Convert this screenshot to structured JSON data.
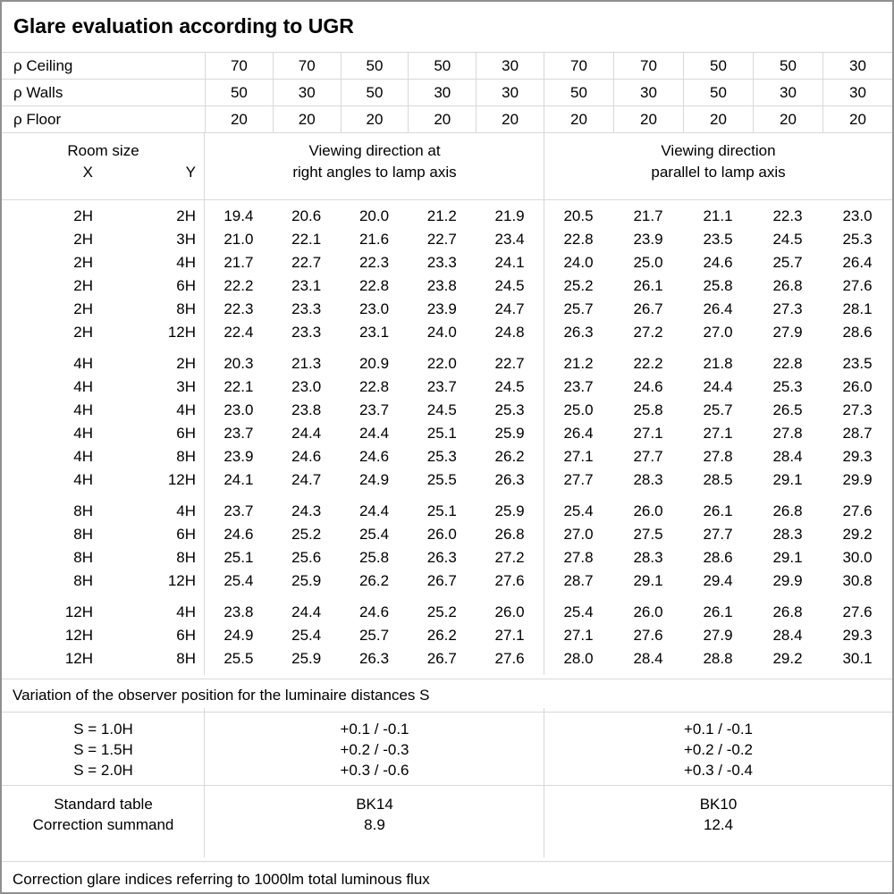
{
  "title": "Glare evaluation according to UGR",
  "colors": {
    "background": "#ffffff",
    "text": "#000000",
    "border_outer": "#909090",
    "border_inner": "#d8d8d8"
  },
  "reflectance_rows": [
    {
      "label": "ρ Ceiling",
      "values": [
        "70",
        "70",
        "50",
        "50",
        "30",
        "70",
        "70",
        "50",
        "50",
        "30"
      ]
    },
    {
      "label": "ρ Walls",
      "values": [
        "50",
        "30",
        "50",
        "30",
        "30",
        "50",
        "30",
        "50",
        "30",
        "30"
      ]
    },
    {
      "label": "ρ Floor",
      "values": [
        "20",
        "20",
        "20",
        "20",
        "20",
        "20",
        "20",
        "20",
        "20",
        "20"
      ]
    }
  ],
  "header": {
    "room_size": "Room size",
    "x": "X",
    "y": "Y",
    "group1_line1": "Viewing direction at",
    "group1_line2": "right angles to lamp axis",
    "group2_line1": "Viewing direction",
    "group2_line2": "parallel to lamp axis"
  },
  "blocks": [
    {
      "rows": [
        {
          "x": "2H",
          "y": "2H",
          "values": [
            "19.4",
            "20.6",
            "20.0",
            "21.2",
            "21.9",
            "20.5",
            "21.7",
            "21.1",
            "22.3",
            "23.0"
          ]
        },
        {
          "x": "2H",
          "y": "3H",
          "values": [
            "21.0",
            "22.1",
            "21.6",
            "22.7",
            "23.4",
            "22.8",
            "23.9",
            "23.5",
            "24.5",
            "25.3"
          ]
        },
        {
          "x": "2H",
          "y": "4H",
          "values": [
            "21.7",
            "22.7",
            "22.3",
            "23.3",
            "24.1",
            "24.0",
            "25.0",
            "24.6",
            "25.7",
            "26.4"
          ]
        },
        {
          "x": "2H",
          "y": "6H",
          "values": [
            "22.2",
            "23.1",
            "22.8",
            "23.8",
            "24.5",
            "25.2",
            "26.1",
            "25.8",
            "26.8",
            "27.6"
          ]
        },
        {
          "x": "2H",
          "y": "8H",
          "values": [
            "22.3",
            "23.3",
            "23.0",
            "23.9",
            "24.7",
            "25.7",
            "26.7",
            "26.4",
            "27.3",
            "28.1"
          ]
        },
        {
          "x": "2H",
          "y": "12H",
          "values": [
            "22.4",
            "23.3",
            "23.1",
            "24.0",
            "24.8",
            "26.3",
            "27.2",
            "27.0",
            "27.9",
            "28.6"
          ]
        }
      ]
    },
    {
      "rows": [
        {
          "x": "4H",
          "y": "2H",
          "values": [
            "20.3",
            "21.3",
            "20.9",
            "22.0",
            "22.7",
            "21.2",
            "22.2",
            "21.8",
            "22.8",
            "23.5"
          ]
        },
        {
          "x": "4H",
          "y": "3H",
          "values": [
            "22.1",
            "23.0",
            "22.8",
            "23.7",
            "24.5",
            "23.7",
            "24.6",
            "24.4",
            "25.3",
            "26.0"
          ]
        },
        {
          "x": "4H",
          "y": "4H",
          "values": [
            "23.0",
            "23.8",
            "23.7",
            "24.5",
            "25.3",
            "25.0",
            "25.8",
            "25.7",
            "26.5",
            "27.3"
          ]
        },
        {
          "x": "4H",
          "y": "6H",
          "values": [
            "23.7",
            "24.4",
            "24.4",
            "25.1",
            "25.9",
            "26.4",
            "27.1",
            "27.1",
            "27.8",
            "28.7"
          ]
        },
        {
          "x": "4H",
          "y": "8H",
          "values": [
            "23.9",
            "24.6",
            "24.6",
            "25.3",
            "26.2",
            "27.1",
            "27.7",
            "27.8",
            "28.4",
            "29.3"
          ]
        },
        {
          "x": "4H",
          "y": "12H",
          "values": [
            "24.1",
            "24.7",
            "24.9",
            "25.5",
            "26.3",
            "27.7",
            "28.3",
            "28.5",
            "29.1",
            "29.9"
          ]
        }
      ]
    },
    {
      "rows": [
        {
          "x": "8H",
          "y": "4H",
          "values": [
            "23.7",
            "24.3",
            "24.4",
            "25.1",
            "25.9",
            "25.4",
            "26.0",
            "26.1",
            "26.8",
            "27.6"
          ]
        },
        {
          "x": "8H",
          "y": "6H",
          "values": [
            "24.6",
            "25.2",
            "25.4",
            "26.0",
            "26.8",
            "27.0",
            "27.5",
            "27.7",
            "28.3",
            "29.2"
          ]
        },
        {
          "x": "8H",
          "y": "8H",
          "values": [
            "25.1",
            "25.6",
            "25.8",
            "26.3",
            "27.2",
            "27.8",
            "28.3",
            "28.6",
            "29.1",
            "30.0"
          ]
        },
        {
          "x": "8H",
          "y": "12H",
          "values": [
            "25.4",
            "25.9",
            "26.2",
            "26.7",
            "27.6",
            "28.7",
            "29.1",
            "29.4",
            "29.9",
            "30.8"
          ]
        }
      ]
    },
    {
      "rows": [
        {
          "x": "12H",
          "y": "4H",
          "values": [
            "23.8",
            "24.4",
            "24.6",
            "25.2",
            "26.0",
            "25.4",
            "26.0",
            "26.1",
            "26.8",
            "27.6"
          ]
        },
        {
          "x": "12H",
          "y": "6H",
          "values": [
            "24.9",
            "25.4",
            "25.7",
            "26.2",
            "27.1",
            "27.1",
            "27.6",
            "27.9",
            "28.4",
            "29.3"
          ]
        },
        {
          "x": "12H",
          "y": "8H",
          "values": [
            "25.5",
            "25.9",
            "26.3",
            "26.7",
            "27.6",
            "28.0",
            "28.4",
            "28.8",
            "29.2",
            "30.1"
          ]
        }
      ]
    }
  ],
  "variation_note": "Variation of the observer position for the luminaire distances S",
  "s_rows": [
    {
      "label": "S = 1.0H",
      "g1": "+0.1 / -0.1",
      "g2": "+0.1 / -0.1"
    },
    {
      "label": "S = 1.5H",
      "g1": "+0.2 / -0.3",
      "g2": "+0.2 / -0.2"
    },
    {
      "label": "S = 2.0H",
      "g1": "+0.3 / -0.6",
      "g2": "+0.3 / -0.4"
    }
  ],
  "standard_rows": [
    {
      "label": "Standard table",
      "g1": "BK14",
      "g2": "BK10"
    },
    {
      "label": "Correction summand",
      "g1": "8.9",
      "g2": "12.4"
    }
  ],
  "footer_note": "Correction glare indices referring to 1000lm total luminous flux"
}
